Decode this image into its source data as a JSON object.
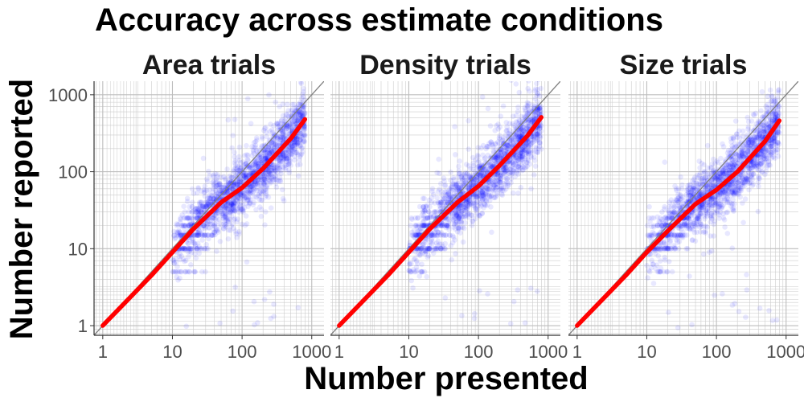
{
  "chart_data": {
    "type": "scatter",
    "title": "Accuracy across estimate conditions",
    "xlabel": "Number presented",
    "ylabel": "Number reported",
    "x_scale": "log10",
    "y_scale": "log10",
    "xlim": [
      0.75,
      1500
    ],
    "ylim": [
      0.75,
      1500
    ],
    "x_ticks": [
      1,
      10,
      100,
      1000
    ],
    "y_ticks": [
      1,
      10,
      100,
      1000
    ],
    "x_tick_labels": [
      "1",
      "10",
      "100",
      "1000"
    ],
    "y_tick_labels": [
      "1",
      "10",
      "100",
      "1000"
    ],
    "grid": true,
    "reference_line": "y = x",
    "colors": {
      "points": "#0000ff",
      "fit": "#ff0000",
      "reference": "#7f7f7f",
      "grid": "#cccccc",
      "axis": "#333333"
    },
    "panels": [
      {
        "name": "Area trials",
        "x_range": [
          10,
          800
        ],
        "fit": [
          [
            1,
            1
          ],
          [
            5,
            4.5
          ],
          [
            10,
            9
          ],
          [
            20,
            18
          ],
          [
            50,
            40
          ],
          [
            100,
            62
          ],
          [
            200,
            110
          ],
          [
            500,
            270
          ],
          [
            800,
            480
          ]
        ]
      },
      {
        "name": "Density trials",
        "x_range": [
          10,
          800
        ],
        "fit": [
          [
            1,
            1
          ],
          [
            5,
            4.5
          ],
          [
            10,
            9
          ],
          [
            20,
            18
          ],
          [
            50,
            40
          ],
          [
            100,
            65
          ],
          [
            200,
            120
          ],
          [
            500,
            290
          ],
          [
            800,
            510
          ]
        ]
      },
      {
        "name": "Size trials",
        "x_range": [
          10,
          800
        ],
        "fit": [
          [
            1,
            1
          ],
          [
            5,
            4.5
          ],
          [
            10,
            9
          ],
          [
            20,
            17
          ],
          [
            50,
            38
          ],
          [
            100,
            58
          ],
          [
            200,
            100
          ],
          [
            500,
            250
          ],
          [
            800,
            460
          ]
        ]
      }
    ]
  }
}
